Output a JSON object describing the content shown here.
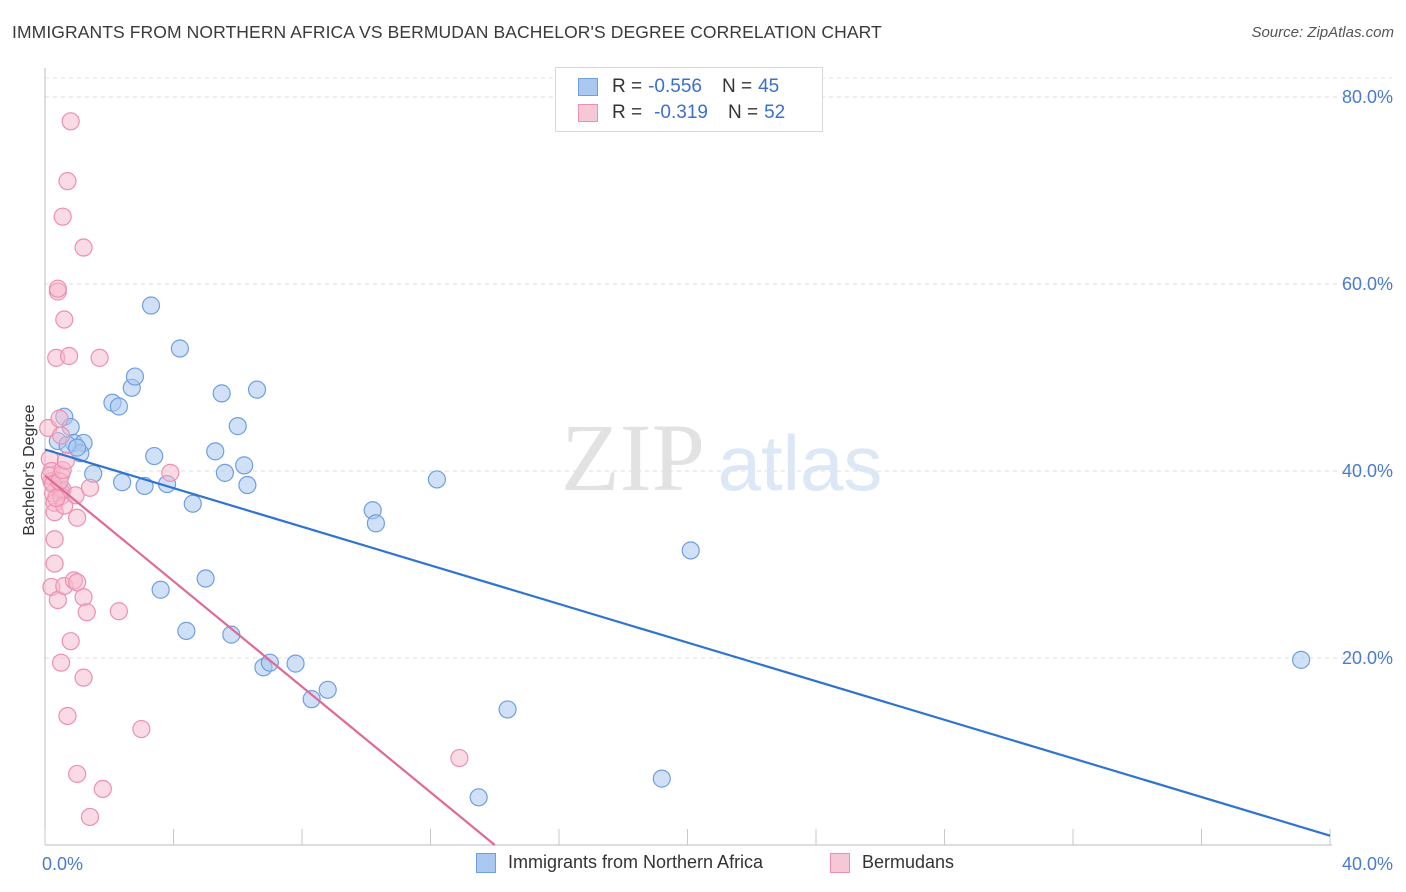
{
  "title": "IMMIGRANTS FROM NORTHERN AFRICA VS BERMUDAN BACHELOR'S DEGREE CORRELATION CHART",
  "source": "Source: ZipAtlas.com",
  "watermark": {
    "zip": "ZIP",
    "atlas": "atlas"
  },
  "legend_top": {
    "rows": [
      {
        "r_label": "R =",
        "r_value": "-0.556",
        "n_label": "N =",
        "n_value": "45"
      },
      {
        "r_label": "R =",
        "r_value": "-0.319",
        "n_label": "N =",
        "n_value": "52"
      }
    ]
  },
  "legend_bottom": {
    "items": [
      {
        "label": "Immigrants from Northern Africa"
      },
      {
        "label": "Bermudans"
      }
    ]
  },
  "colors": {
    "blue_fill": "#aac8f0",
    "blue_stroke": "#6f9fe0",
    "blue_line": "#2f74d0",
    "pink_fill": "#f6b8cb",
    "pink_stroke": "#ee8fae",
    "pink_line": "#e06a97",
    "axis_text": "#4a7bd0"
  },
  "chart_data": {
    "type": "scatter",
    "title": "IMMIGRANTS FROM NORTHERN AFRICA VS BERMUDAN BACHELOR'S DEGREE CORRELATION CHART",
    "xlabel": "",
    "ylabel": "Bachelor's Degree",
    "xlim": [
      0,
      40
    ],
    "ylim": [
      0,
      80
    ],
    "x_tick_labels": [
      "0.0%",
      "40.0%"
    ],
    "y_tick_labels": [
      "20.0%",
      "40.0%",
      "60.0%",
      "80.0%"
    ],
    "y_ticks": [
      20,
      40,
      60,
      80
    ],
    "grid": true,
    "legend_position": "bottom",
    "series": [
      {
        "name": "Immigrants from Northern Africa",
        "color": "#aac8f0",
        "points": [
          [
            0.4,
            43.2
          ],
          [
            0.6,
            45.8
          ],
          [
            0.5,
            37.8
          ],
          [
            0.8,
            44.7
          ],
          [
            0.9,
            43.0
          ],
          [
            1.2,
            43.0
          ],
          [
            1.1,
            41.9
          ],
          [
            1.5,
            39.7
          ],
          [
            2.1,
            47.3
          ],
          [
            2.3,
            46.9
          ],
          [
            2.4,
            38.8
          ],
          [
            2.7,
            48.9
          ],
          [
            2.8,
            50.1
          ],
          [
            3.1,
            38.4
          ],
          [
            3.3,
            57.7
          ],
          [
            3.4,
            41.6
          ],
          [
            3.6,
            27.3
          ],
          [
            3.8,
            38.6
          ],
          [
            4.2,
            53.1
          ],
          [
            4.4,
            22.9
          ],
          [
            4.6,
            36.5
          ],
          [
            5.0,
            28.5
          ],
          [
            5.3,
            42.1
          ],
          [
            5.5,
            48.3
          ],
          [
            5.6,
            39.8
          ],
          [
            5.8,
            22.5
          ],
          [
            6.0,
            44.8
          ],
          [
            6.2,
            40.6
          ],
          [
            6.3,
            38.5
          ],
          [
            6.6,
            48.7
          ],
          [
            6.8,
            19.0
          ],
          [
            7.0,
            19.5
          ],
          [
            7.8,
            19.4
          ],
          [
            8.3,
            15.6
          ],
          [
            8.8,
            16.6
          ],
          [
            10.2,
            35.8
          ],
          [
            10.3,
            34.4
          ],
          [
            12.2,
            39.1
          ],
          [
            13.5,
            5.1
          ],
          [
            14.4,
            14.5
          ],
          [
            19.2,
            7.1
          ],
          [
            20.1,
            31.5
          ],
          [
            39.1,
            19.8
          ],
          [
            0.7,
            42.8
          ],
          [
            1.0,
            42.5
          ]
        ]
      },
      {
        "name": "Bermudans",
        "color": "#f6b8cb",
        "points": [
          [
            0.1,
            44.6
          ],
          [
            0.15,
            41.3
          ],
          [
            0.2,
            40.0
          ],
          [
            0.2,
            38.9
          ],
          [
            0.25,
            37.6
          ],
          [
            0.3,
            36.6
          ],
          [
            0.3,
            35.6
          ],
          [
            0.3,
            32.7
          ],
          [
            0.3,
            30.1
          ],
          [
            0.2,
            27.6
          ],
          [
            0.4,
            26.2
          ],
          [
            0.35,
            52.1
          ],
          [
            0.4,
            59.2
          ],
          [
            0.45,
            45.6
          ],
          [
            0.5,
            43.8
          ],
          [
            0.5,
            39.6
          ],
          [
            0.55,
            38.0
          ],
          [
            0.5,
            37.3
          ],
          [
            0.6,
            36.3
          ],
          [
            0.6,
            27.7
          ],
          [
            0.5,
            19.5
          ],
          [
            0.55,
            67.2
          ],
          [
            0.6,
            56.2
          ],
          [
            0.7,
            71.0
          ],
          [
            0.75,
            52.3
          ],
          [
            0.7,
            13.8
          ],
          [
            0.8,
            77.4
          ],
          [
            0.8,
            21.8
          ],
          [
            0.9,
            28.3
          ],
          [
            0.95,
            37.4
          ],
          [
            1.0,
            35.0
          ],
          [
            1.0,
            28.1
          ],
          [
            1.0,
            7.6
          ],
          [
            1.2,
            63.9
          ],
          [
            1.2,
            26.5
          ],
          [
            1.2,
            17.9
          ],
          [
            1.3,
            24.9
          ],
          [
            1.4,
            38.2
          ],
          [
            1.4,
            3.0
          ],
          [
            1.7,
            52.1
          ],
          [
            1.8,
            6.0
          ],
          [
            2.3,
            25.0
          ],
          [
            3.0,
            12.4
          ],
          [
            3.9,
            39.8
          ],
          [
            12.9,
            9.3
          ],
          [
            0.15,
            39.5
          ],
          [
            0.25,
            38.6
          ],
          [
            0.35,
            37.1
          ],
          [
            0.45,
            38.9
          ],
          [
            0.55,
            40.1
          ],
          [
            0.4,
            59.5
          ],
          [
            0.65,
            41.1
          ]
        ]
      }
    ],
    "trendlines": [
      {
        "series": "Immigrants from Northern Africa",
        "x0": 0.0,
        "y0": 42.3,
        "x1": 40.0,
        "y1": 1.0
      },
      {
        "series": "Bermudans",
        "x0": 0.0,
        "y0": 39.5,
        "x1": 14.0,
        "y1": 0.0
      }
    ]
  }
}
